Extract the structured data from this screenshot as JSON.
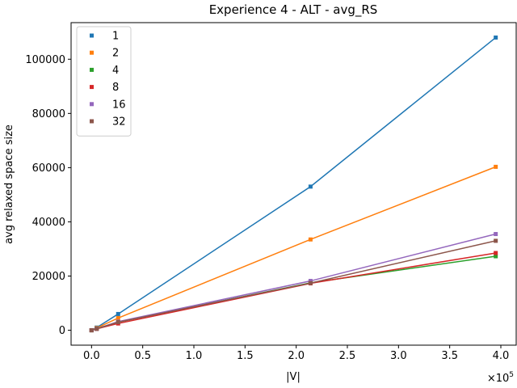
{
  "chart_data": {
    "type": "line",
    "title": "Experience 4 - ALT - avg_RS",
    "xlabel": "|V|",
    "ylabel": "avg relaxed space size",
    "x_multiplier_label": "×10",
    "x_multiplier_exponent": "5",
    "xlim": [
      -0.2,
      4.15
    ],
    "ylim": [
      -5500,
      113500
    ],
    "x_ticks": [
      0.0,
      0.5,
      1.0,
      1.5,
      2.0,
      2.5,
      3.0,
      3.5,
      4.0
    ],
    "x_tick_labels": [
      "0.0",
      "0.5",
      "1.0",
      "1.5",
      "2.0",
      "2.5",
      "3.0",
      "3.5",
      "4.0"
    ],
    "y_ticks": [
      0,
      20000,
      40000,
      60000,
      80000,
      100000
    ],
    "y_tick_labels": [
      "0",
      "20000",
      "40000",
      "60000",
      "80000",
      "100000"
    ],
    "grid": false,
    "legend_position": "top-left",
    "x": [
      0.0,
      0.05,
      0.26,
      2.14,
      3.95
    ],
    "series": [
      {
        "name": "1",
        "color": "#1f77b4",
        "values": [
          0,
          1000,
          6000,
          53000,
          108000
        ]
      },
      {
        "name": "2",
        "color": "#ff7f0e",
        "values": [
          0,
          800,
          4500,
          33500,
          60300
        ]
      },
      {
        "name": "4",
        "color": "#2ca02c",
        "values": [
          0,
          600,
          3000,
          17500,
          27300
        ]
      },
      {
        "name": "8",
        "color": "#d62728",
        "values": [
          0,
          500,
          2500,
          17300,
          28500
        ]
      },
      {
        "name": "16",
        "color": "#9467bd",
        "values": [
          0,
          550,
          3200,
          18200,
          35500
        ]
      },
      {
        "name": "32",
        "color": "#8c564b",
        "values": [
          0,
          520,
          3000,
          17400,
          33000
        ]
      }
    ]
  }
}
